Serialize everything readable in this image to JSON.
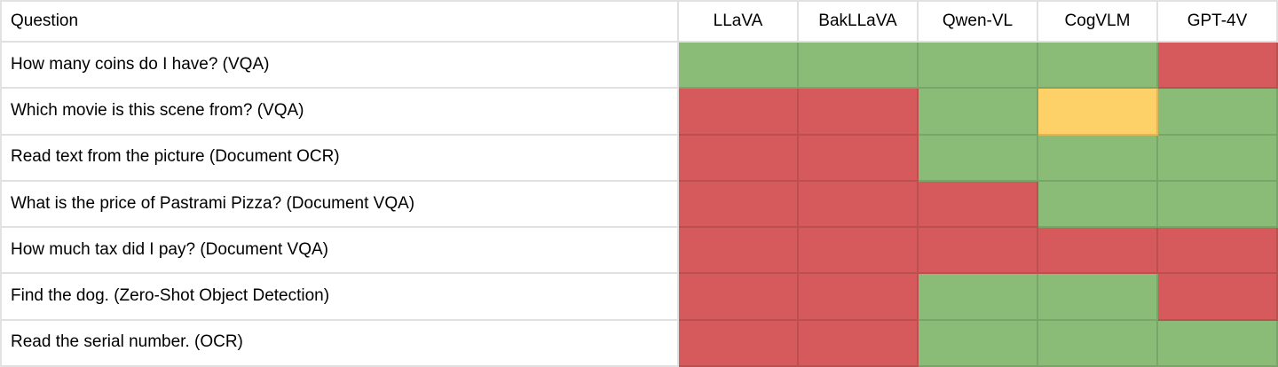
{
  "colors": {
    "pass": "#8ABC77",
    "fail": "#D65A5C",
    "partial": "#FDD068",
    "gridline": "rgba(0,0,0,0.12)",
    "outer_border": "#E2E2E2",
    "text": "#000000"
  },
  "table": {
    "header": {
      "question_label": "Question",
      "models": [
        "LLaVA",
        "BakLLaVA",
        "Qwen-VL",
        "CogVLM",
        "GPT-4V"
      ]
    },
    "rows": [
      {
        "question": "How many coins do I have? (VQA)",
        "results": [
          "pass",
          "pass",
          "pass",
          "pass",
          "fail"
        ]
      },
      {
        "question": "Which movie is this scene from? (VQA)",
        "results": [
          "fail",
          "fail",
          "pass",
          "partial",
          "pass"
        ]
      },
      {
        "question": "Read text from the picture (Document OCR)",
        "results": [
          "fail",
          "fail",
          "pass",
          "pass",
          "pass"
        ]
      },
      {
        "question": "What is the price of Pastrami Pizza? (Document VQA)",
        "results": [
          "fail",
          "fail",
          "fail",
          "pass",
          "pass"
        ]
      },
      {
        "question": "How much tax did I pay? (Document VQA)",
        "results": [
          "fail",
          "fail",
          "fail",
          "fail",
          "fail"
        ]
      },
      {
        "question": "Find the dog. (Zero-Shot Object Detection)",
        "results": [
          "fail",
          "fail",
          "pass",
          "pass",
          "fail"
        ]
      },
      {
        "question": "Read the serial number. (OCR)",
        "results": [
          "fail",
          "fail",
          "pass",
          "pass",
          "pass"
        ]
      }
    ]
  },
  "chart_data": {
    "type": "heatmap",
    "x_labels": [
      "LLaVA",
      "BakLLaVA",
      "Qwen-VL",
      "CogVLM",
      "GPT-4V"
    ],
    "y_labels": [
      "How many coins do I have? (VQA)",
      "Which movie is this scene from? (VQA)",
      "Read text from the picture (Document OCR)",
      "What is the price of Pastrami Pizza? (Document VQA)",
      "How much tax did I pay? (Document VQA)",
      "Find the dog. (Zero-Shot Object Detection)",
      "Read the serial number. (OCR)"
    ],
    "values": [
      [
        "pass",
        "pass",
        "pass",
        "pass",
        "fail"
      ],
      [
        "fail",
        "fail",
        "pass",
        "partial",
        "pass"
      ],
      [
        "fail",
        "fail",
        "pass",
        "pass",
        "pass"
      ],
      [
        "fail",
        "fail",
        "fail",
        "pass",
        "pass"
      ],
      [
        "fail",
        "fail",
        "fail",
        "fail",
        "fail"
      ],
      [
        "fail",
        "fail",
        "pass",
        "pass",
        "fail"
      ],
      [
        "fail",
        "fail",
        "pass",
        "pass",
        "pass"
      ]
    ],
    "cell_color_legend": {
      "pass": "#8ABC77",
      "fail": "#D65A5C",
      "partial": "#FDD068"
    },
    "grid": true,
    "legend_position": "none"
  }
}
